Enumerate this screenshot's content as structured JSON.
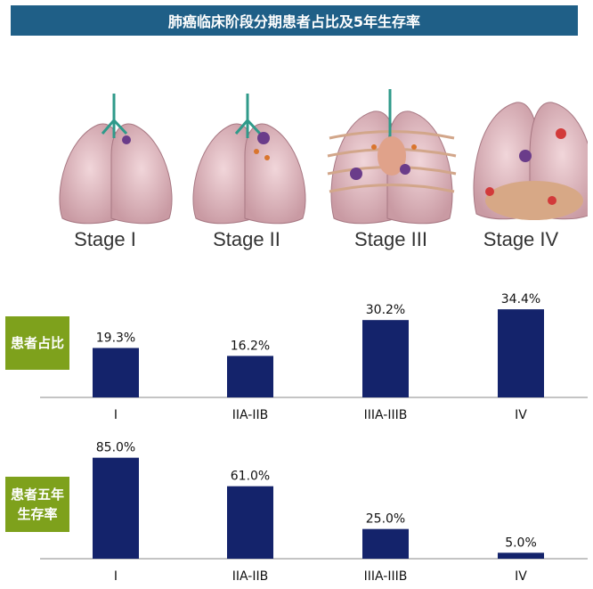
{
  "title": "肺癌临床阶段分期患者占比及5年生存率",
  "stage_labels": [
    "Stage I",
    "Stage II",
    "Stage III",
    "Stage IV"
  ],
  "side_labels": {
    "proportion": "患者占比",
    "survival_line1": "患者五年",
    "survival_line2": "生存率"
  },
  "colors": {
    "banner": "#1f5f87",
    "bar": "#14236b",
    "side_label": "#7ea11c"
  },
  "chart_data": [
    {
      "type": "bar",
      "categories": [
        "I",
        "IIA-IIB",
        "IIIA-IIIB",
        "IV"
      ],
      "values": [
        19.3,
        16.2,
        30.2,
        34.4
      ],
      "data_labels": [
        "19.3%",
        "16.2%",
        "30.2%",
        "34.4%"
      ],
      "ylim": [
        0,
        40
      ]
    },
    {
      "type": "bar",
      "categories": [
        "I",
        "IIA-IIB",
        "IIIA-IIIB",
        "IV"
      ],
      "values": [
        85.0,
        61.0,
        25.0,
        5.0
      ],
      "data_labels": [
        "85.0%",
        "61.0%",
        "25.0%",
        "5.0%"
      ],
      "ylim": [
        0,
        90
      ]
    }
  ]
}
